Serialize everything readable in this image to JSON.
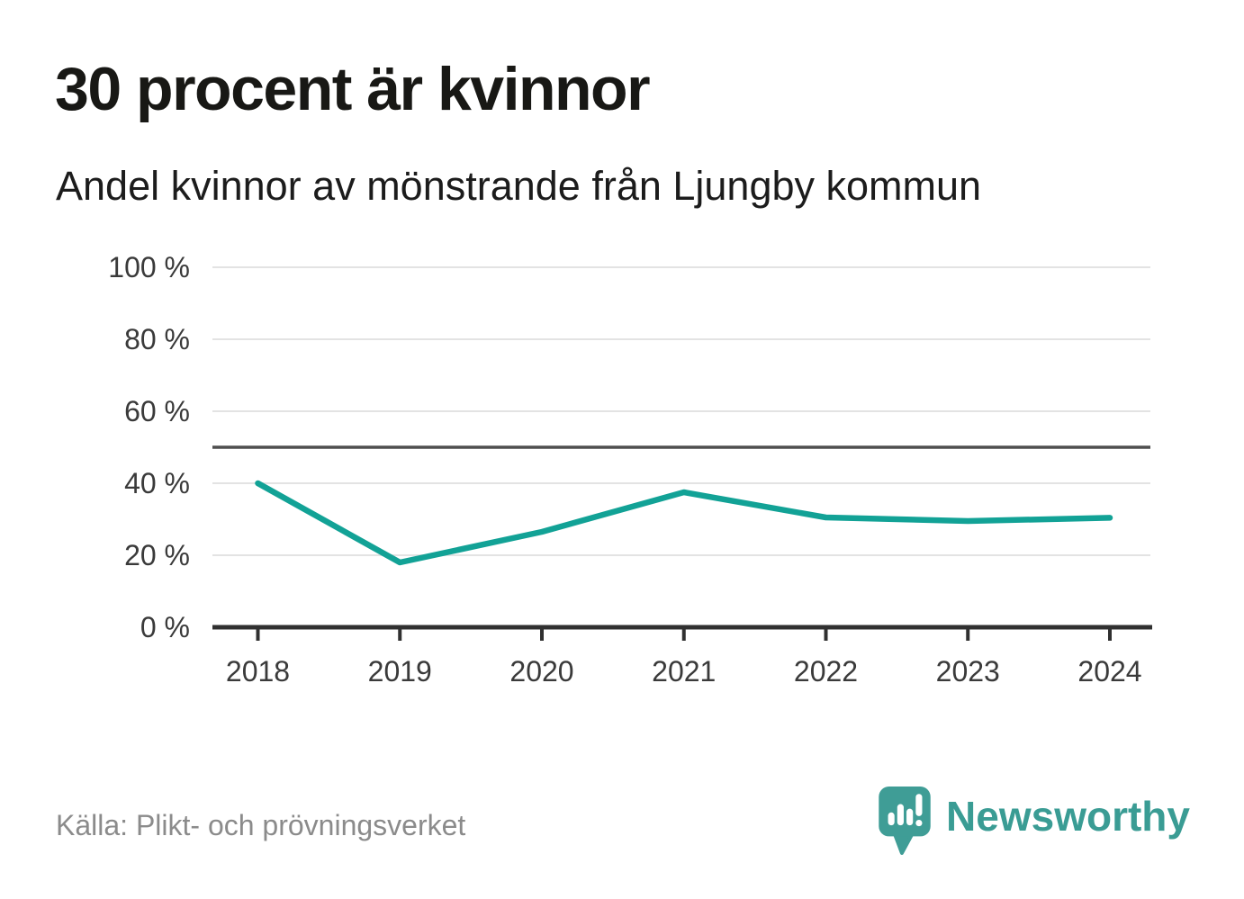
{
  "header": {
    "title": "30 procent är kvinnor",
    "subtitle": "Andel kvinnor av mönstrande från Ljungby kommun"
  },
  "chart_data": {
    "type": "line",
    "x": [
      2018,
      2019,
      2020,
      2021,
      2022,
      2023,
      2024
    ],
    "series": [
      {
        "name": "Andel kvinnor av mönstrande",
        "values": [
          40,
          18,
          26.5,
          37.5,
          30.5,
          29.5,
          30.4
        ]
      }
    ],
    "title": "30 procent är kvinnor",
    "subtitle": "Andel kvinnor av mönstrande från Ljungby kommun",
    "xlabel": "",
    "ylabel": "",
    "ylim": [
      0,
      100
    ],
    "yticks": [
      0,
      20,
      40,
      60,
      80,
      100
    ],
    "ytick_labels": [
      "0 %",
      "20 %",
      "40 %",
      "60 %",
      "80 %",
      "100 %"
    ],
    "reference_line": {
      "value": 50,
      "color": "#4f4f4f"
    },
    "grid": true,
    "legend": false,
    "line_color": "#12a296",
    "grid_color": "#e3e3e3",
    "axis_color": "#303030",
    "tick_label_color": "#3a3a3a"
  },
  "footer": {
    "source": "Källa: Plikt- och prövningsverket",
    "brand_name": "Newsworthy"
  },
  "colors": {
    "accent_teal": "#12a296",
    "logo_teal": "#3f9d96",
    "brand_text_teal": "#3a9c94",
    "title_text": "#181815",
    "muted_text": "#8b8b8b"
  }
}
